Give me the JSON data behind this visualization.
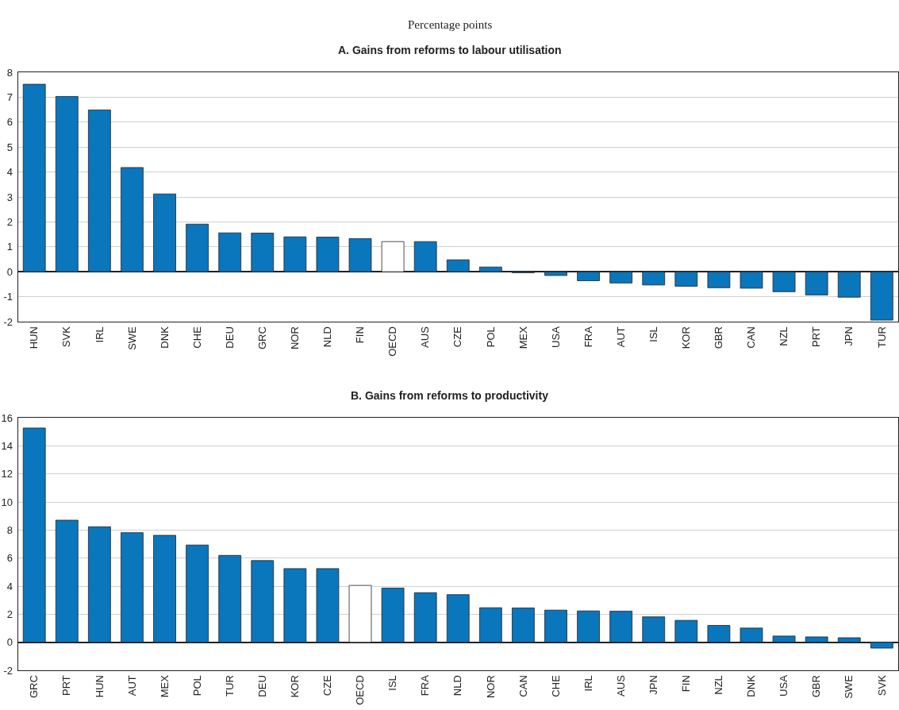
{
  "chart_data": [
    {
      "type": "bar",
      "subtitle": "Percentage points",
      "title": "A. Gains from reforms to labour utilisation",
      "categories": [
        "HUN",
        "SVK",
        "IRL",
        "SWE",
        "DNK",
        "CHE",
        "DEU",
        "GRC",
        "NOR",
        "NLD",
        "FIN",
        "OECD",
        "AUS",
        "CZE",
        "POL",
        "MEX",
        "USA",
        "FRA",
        "AUT",
        "ISL",
        "KOR",
        "GBR",
        "CAN",
        "NZL",
        "PRT",
        "JPN",
        "TUR"
      ],
      "values": [
        7.52,
        7.03,
        6.49,
        4.18,
        3.12,
        1.91,
        1.56,
        1.55,
        1.4,
        1.39,
        1.33,
        1.21,
        1.21,
        0.48,
        0.19,
        -0.04,
        -0.15,
        -0.36,
        -0.45,
        -0.53,
        -0.58,
        -0.64,
        -0.66,
        -0.8,
        -0.93,
        -1.02,
        -1.94
      ],
      "colors": [
        "#0a76bc",
        "#0a76bc",
        "#0a76bc",
        "#0a76bc",
        "#0a76bc",
        "#0a76bc",
        "#0a76bc",
        "#0a76bc",
        "#0a76bc",
        "#0a76bc",
        "#0a76bc",
        "#ffffff",
        "#0a76bc",
        "#0a76bc",
        "#0a76bc",
        "#0a76bc",
        "#0a76bc",
        "#0a76bc",
        "#0a76bc",
        "#0a76bc",
        "#0a76bc",
        "#0a76bc",
        "#0a76bc",
        "#0a76bc",
        "#0a76bc",
        "#0a76bc",
        "#0a76bc"
      ],
      "ylim": [
        -2,
        8
      ],
      "yticks": [
        -2,
        -1,
        0,
        1,
        2,
        3,
        4,
        5,
        6,
        7,
        8
      ],
      "grid": "y"
    },
    {
      "type": "bar",
      "title": "B. Gains from reforms to productivity",
      "categories": [
        "GRC",
        "PRT",
        "HUN",
        "AUT",
        "MEX",
        "POL",
        "TUR",
        "DEU",
        "KOR",
        "CZE",
        "OECD",
        "ISL",
        "FRA",
        "NLD",
        "NOR",
        "CAN",
        "CHE",
        "IRL",
        "AUS",
        "JPN",
        "FIN",
        "NZL",
        "DNK",
        "USA",
        "GBR",
        "SWE",
        "SVK"
      ],
      "values": [
        15.27,
        8.7,
        8.23,
        7.81,
        7.62,
        6.93,
        6.19,
        5.82,
        5.25,
        5.25,
        4.05,
        3.86,
        3.53,
        3.39,
        2.46,
        2.44,
        2.29,
        2.23,
        2.21,
        1.81,
        1.56,
        1.2,
        1.01,
        0.44,
        0.38,
        0.32,
        -0.42
      ],
      "colors": [
        "#0a76bc",
        "#0a76bc",
        "#0a76bc",
        "#0a76bc",
        "#0a76bc",
        "#0a76bc",
        "#0a76bc",
        "#0a76bc",
        "#0a76bc",
        "#0a76bc",
        "#ffffff",
        "#0a76bc",
        "#0a76bc",
        "#0a76bc",
        "#0a76bc",
        "#0a76bc",
        "#0a76bc",
        "#0a76bc",
        "#0a76bc",
        "#0a76bc",
        "#0a76bc",
        "#0a76bc",
        "#0a76bc",
        "#0a76bc",
        "#0a76bc",
        "#0a76bc",
        "#0a76bc"
      ],
      "ylim": [
        -2,
        16
      ],
      "yticks": [
        -2,
        0,
        2,
        4,
        6,
        8,
        10,
        12,
        14,
        16
      ],
      "grid": "y"
    }
  ]
}
